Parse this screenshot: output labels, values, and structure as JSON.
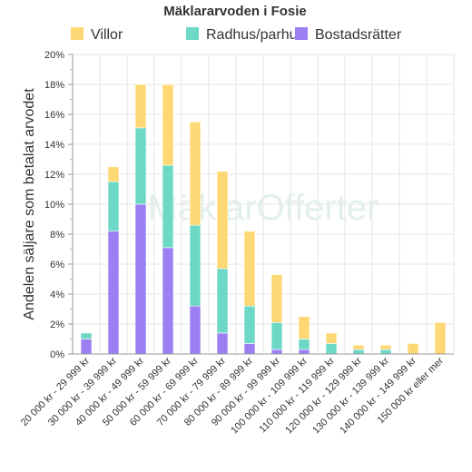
{
  "chart_data": {
    "type": "bar",
    "stacked": true,
    "title": "Mäklararvoden i Fosie",
    "xlabel": "",
    "ylabel": "Andelen säljare som betalat arvodet",
    "ylim": [
      0,
      20
    ],
    "yticks": [
      0,
      2,
      4,
      6,
      8,
      10,
      12,
      14,
      16,
      18,
      20
    ],
    "ytick_suffix": "%",
    "grid": true,
    "legend_position": "top",
    "watermark": "MäklarOfferter",
    "categories": [
      "20 000 kr - 29 999 kr",
      "30 000 kr - 39 999 kr",
      "40 000 kr - 49 999 kr",
      "50 000 kr - 59 999 kr",
      "60 000 kr - 69 999 kr",
      "70 000 kr - 79 999 kr",
      "80 000 kr - 89 999 kr",
      "90 000 kr - 99 999 kr",
      "100 000 kr - 109 999 kr",
      "110 000 kr - 119 999 kr",
      "120 000 kr - 129 999 kr",
      "130 000 kr - 139 999 kr",
      "140 000 kr - 149 999 kr",
      "150 000 kr eller mer"
    ],
    "series": [
      {
        "name": "Bostadsrätter",
        "color": "#9b7ff3",
        "values": [
          1.0,
          8.2,
          10.0,
          7.1,
          3.2,
          1.4,
          0.7,
          0.3,
          0.3,
          0,
          0,
          0,
          0,
          0
        ]
      },
      {
        "name": "Radhus/parhus",
        "color": "#6dd8c5",
        "values": [
          0.4,
          3.3,
          5.1,
          5.5,
          5.4,
          4.3,
          2.5,
          1.8,
          0.7,
          0.7,
          0.3,
          0.3,
          0,
          0
        ]
      },
      {
        "name": "Villor",
        "color": "#fdd874",
        "values": [
          0,
          1.0,
          2.9,
          5.4,
          6.9,
          6.5,
          5.0,
          3.2,
          1.5,
          0.7,
          0.3,
          0.3,
          0.7,
          2.1
        ]
      }
    ],
    "legend_order": [
      "Villor",
      "Radhus/parhus",
      "Bostadsrätter"
    ]
  }
}
